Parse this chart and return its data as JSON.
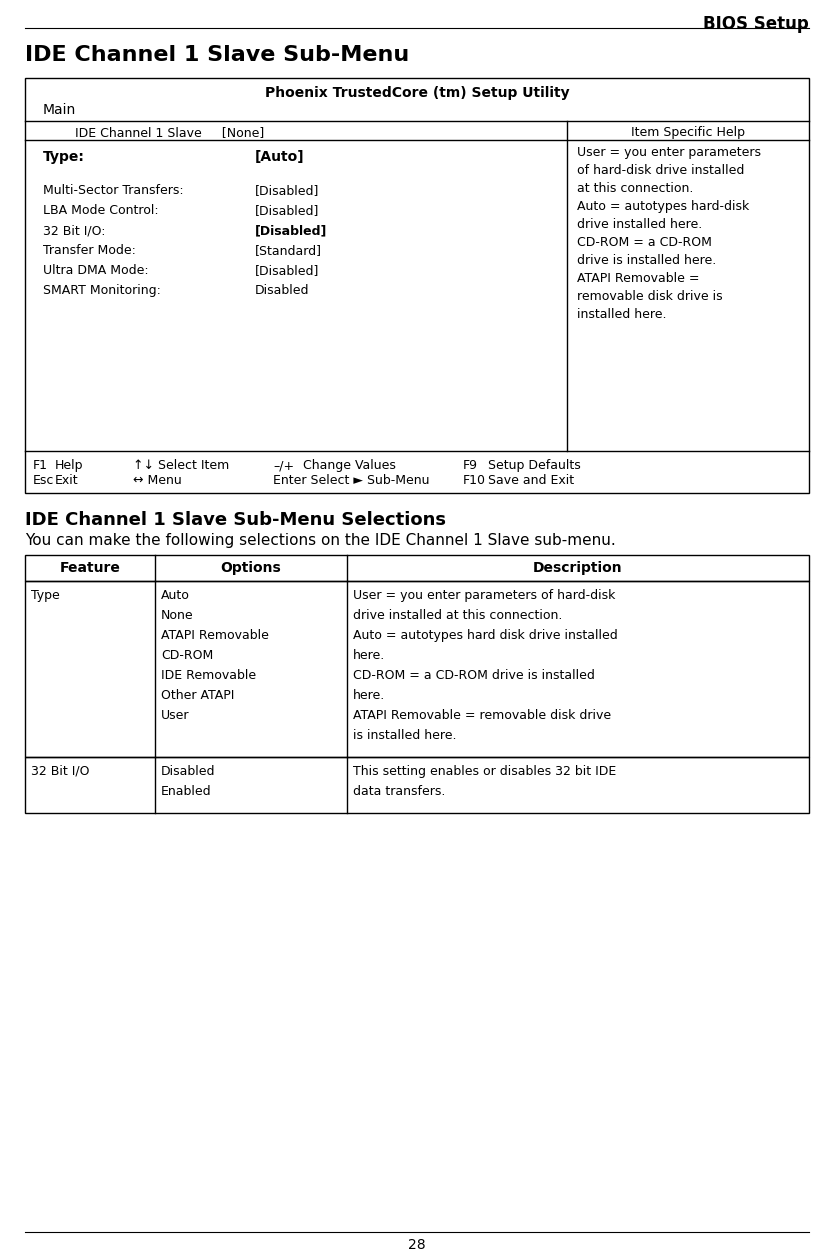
{
  "page_title": "BIOS Setup",
  "section1_title": "IDE Channel 1 Slave Sub-Menu",
  "bios_header": "Phoenix TrustedCore (tm) Setup Utility",
  "bios_nav": "Main",
  "bios_right_text_lines": [
    "User = you enter parameters",
    "of hard-disk drive installed",
    "at this connection.",
    "Auto = autotypes hard-disk",
    "drive installed here.",
    "CD-ROM = a CD-ROM",
    "drive is installed here.",
    "ATAPI Removable =",
    "removable disk drive is",
    "installed here."
  ],
  "section2_title": "IDE Channel 1 Slave Sub-Menu Selections",
  "section2_subtitle": "You can make the following selections on the IDE Channel 1 Slave sub-menu.",
  "table_headers": [
    "Feature",
    "Options",
    "Description"
  ],
  "type_options": [
    "Auto",
    "None",
    "ATAPI Removable",
    "CD-ROM",
    "IDE Removable",
    "Other ATAPI",
    "User"
  ],
  "type_desc_lines": [
    "User = you enter parameters of hard-disk",
    "drive installed at this connection.",
    "Auto = autotypes hard disk drive installed",
    "here.",
    "CD-ROM = a CD-ROM drive is installed",
    "here.",
    "ATAPI Removable = removable disk drive",
    "is installed here."
  ],
  "bit_options": [
    "Disabled",
    "Enabled"
  ],
  "bit_desc_lines": [
    "This setting enables or disables 32 bit IDE",
    "data transfers."
  ],
  "page_number": "28",
  "bg_color": "#ffffff"
}
